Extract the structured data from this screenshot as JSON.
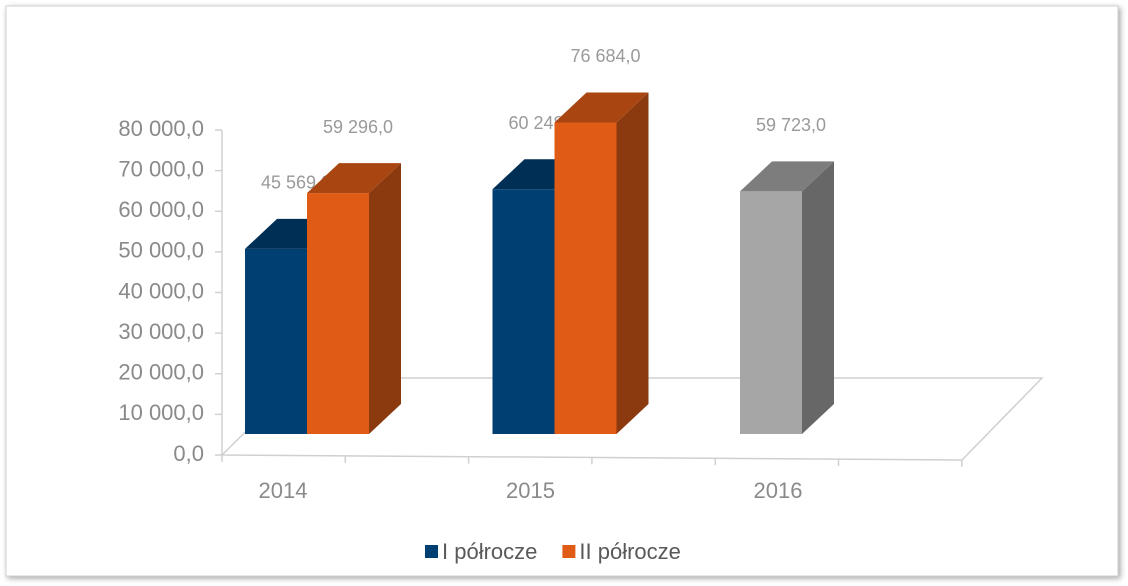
{
  "chart_data": {
    "type": "bar3d",
    "categories": [
      "2014",
      "2015",
      "2016"
    ],
    "series": [
      {
        "name": "I półrocze",
        "color": "#003f72",
        "colors": [
          "#003f72",
          "#003f72",
          "#a6a6a6"
        ],
        "values": [
          45569,
          60248,
          59723
        ],
        "value_labels": [
          "45 569,0",
          "60 248,0",
          "59 723,0"
        ]
      },
      {
        "name": "II półrocze",
        "color": "#e05c16",
        "values": [
          59296,
          76684,
          null
        ],
        "value_labels": [
          "59 296,0",
          "76 684,0",
          null
        ]
      }
    ],
    "ylim": [
      0,
      80000
    ],
    "yticks": [
      {
        "value": 0,
        "label": "0,0"
      },
      {
        "value": 10000,
        "label": "10 000,0"
      },
      {
        "value": 20000,
        "label": "20 000,0"
      },
      {
        "value": 30000,
        "label": "30 000,0"
      },
      {
        "value": 40000,
        "label": "40 000,0"
      },
      {
        "value": 50000,
        "label": "50 000,0"
      },
      {
        "value": 60000,
        "label": "60 000,0"
      },
      {
        "value": 70000,
        "label": "70 000,0"
      },
      {
        "value": 80000,
        "label": "80 000,0"
      }
    ],
    "legend": "bottom"
  }
}
